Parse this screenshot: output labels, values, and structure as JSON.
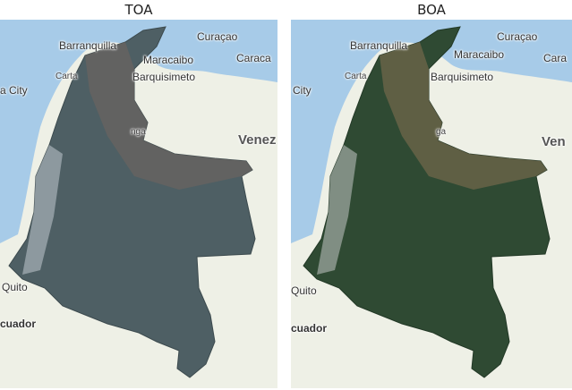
{
  "panels": [
    {
      "title": "TOA",
      "labels": {
        "barranquilla": "Barranquilla",
        "curacao": "Curaçao",
        "maracaibo": "Maracaibo",
        "caracas": "Caraca",
        "cartagena": "Carta",
        "barquisimeto": "Barquisimeto",
        "city": "a City",
        "venezuela": "Venez",
        "quito": "Quito",
        "ecuador": "cuador",
        "ngauga": "nga"
      }
    },
    {
      "title": "BOA",
      "labels": {
        "barranquilla": "Barranquilla",
        "curacao": "Curaçao",
        "maracaibo": "Maracaibo",
        "caracas": "Cara",
        "cartagena": "Carta",
        "barquisimeto": "Barquisimeto",
        "city": "City",
        "venezuela": "Ven",
        "quito": "Quito",
        "ecuador": "cuador",
        "ngauga": "ga"
      }
    }
  ],
  "colors": {
    "sea": "#a7cbe8",
    "land": "#eef0e6",
    "toa_fill": "#4e5f64",
    "boa_fill": "#2f4a33"
  }
}
